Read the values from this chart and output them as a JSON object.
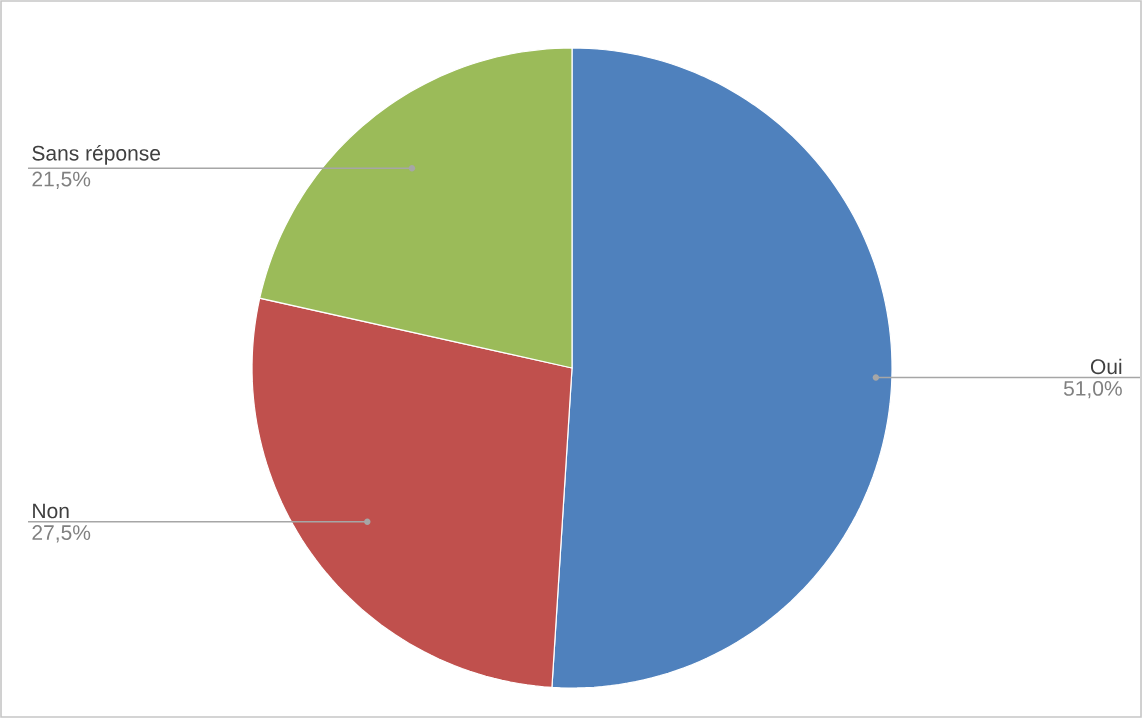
{
  "chart_data": {
    "type": "pie",
    "categories": [
      "Oui",
      "Non",
      "Sans réponse"
    ],
    "values": [
      51.0,
      27.5,
      21.5
    ],
    "value_labels": [
      "51,0%",
      "27,5%",
      "21,5%"
    ],
    "colors": [
      "#4f81bd",
      "#c0504d",
      "#9bbb59"
    ]
  }
}
